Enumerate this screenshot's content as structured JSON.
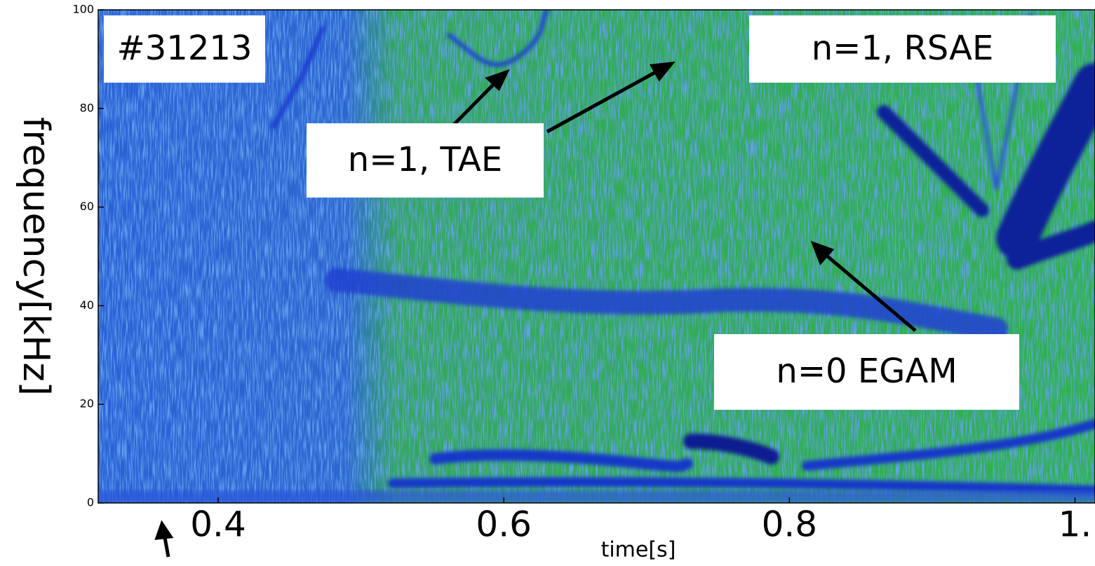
{
  "chart_data": {
    "type": "spectrogram",
    "xlabel": "time[s]",
    "ylabel": "frequency[kHz]",
    "xlim": [
      0.316,
      1.014
    ],
    "ylim": [
      0,
      100
    ],
    "xticks": [
      0.4,
      0.6,
      0.8,
      {
        "value": 1.0,
        "label": "1."
      }
    ],
    "yticks": [
      0,
      20,
      40,
      60,
      80,
      100
    ],
    "annotations": [
      {
        "text": "#31213"
      },
      {
        "text": "n=1, RSAE"
      },
      {
        "text": "n=1, TAE"
      },
      {
        "text": "n=0 EGAM"
      }
    ]
  }
}
